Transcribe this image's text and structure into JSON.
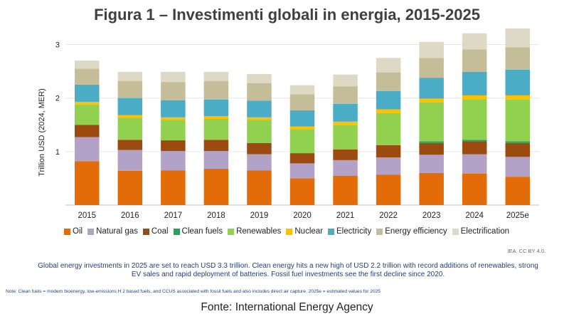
{
  "chart_data": {
    "type": "bar",
    "stacked": true,
    "title": "Figura 1 – Investimenti globali in energia, 2015-2025",
    "xlabel": "",
    "ylabel": "Trillion USD (2024, MER)",
    "ylim": [
      0,
      3.3
    ],
    "yticks": [
      1,
      2,
      3
    ],
    "categories": [
      "2015",
      "2016",
      "2017",
      "2018",
      "2019",
      "2020",
      "2021",
      "2022",
      "2023",
      "2024",
      "2025e"
    ],
    "series": [
      {
        "name": "Oil",
        "color": "#e36c09",
        "values": [
          0.82,
          0.64,
          0.65,
          0.68,
          0.65,
          0.5,
          0.55,
          0.57,
          0.6,
          0.59,
          0.53
        ]
      },
      {
        "name": "Natural gas",
        "color": "#b3a2c7",
        "values": [
          0.45,
          0.39,
          0.36,
          0.33,
          0.3,
          0.28,
          0.29,
          0.32,
          0.34,
          0.36,
          0.37
        ]
      },
      {
        "name": "Coal",
        "color": "#9b4a10",
        "values": [
          0.23,
          0.19,
          0.2,
          0.21,
          0.21,
          0.19,
          0.2,
          0.23,
          0.22,
          0.24,
          0.26
        ]
      },
      {
        "name": "Clean fuels",
        "color": "#2ca05a",
        "values": [
          0.0,
          0.0,
          0.0,
          0.0,
          0.0,
          0.0,
          0.0,
          0.0,
          0.03,
          0.03,
          0.03
        ]
      },
      {
        "name": "Renewables",
        "color": "#92d050",
        "values": [
          0.38,
          0.41,
          0.38,
          0.39,
          0.43,
          0.45,
          0.46,
          0.6,
          0.73,
          0.76,
          0.78
        ]
      },
      {
        "name": "Nuclear",
        "color": "#ffc000",
        "values": [
          0.05,
          0.05,
          0.05,
          0.05,
          0.05,
          0.05,
          0.06,
          0.07,
          0.07,
          0.07,
          0.08
        ]
      },
      {
        "name": "Electricity",
        "color": "#4bacc6",
        "values": [
          0.32,
          0.32,
          0.32,
          0.31,
          0.31,
          0.3,
          0.33,
          0.34,
          0.39,
          0.44,
          0.48
        ]
      },
      {
        "name": "Energy efficiency",
        "color": "#c4bd97",
        "values": [
          0.3,
          0.32,
          0.34,
          0.35,
          0.33,
          0.3,
          0.33,
          0.35,
          0.37,
          0.42,
          0.42
        ]
      },
      {
        "name": "Electrification",
        "color": "#ddd9c4",
        "values": [
          0.15,
          0.17,
          0.19,
          0.17,
          0.17,
          0.17,
          0.22,
          0.27,
          0.3,
          0.3,
          0.35
        ]
      }
    ]
  },
  "credit": "IEA. CC BY 4.0.",
  "caption": "Global energy investments in 2025 are set to reach USD 3.3 trillion. Clean energy hits a new high of USD 2.2 trillion with record additions of renewables, strong EV sales and rapid deployment of batteries. Fossil fuel investments see the first decline since 2020.",
  "note": "Note: Clean fuels = modern bioenergy, low-emissions H 2 based fuels, and CCUS associated with fossil fuels and also includes direct air capture. 2025e = estimated values for 2025",
  "source": {
    "label": "Fonte:",
    "value": "International Energy Agency"
  }
}
